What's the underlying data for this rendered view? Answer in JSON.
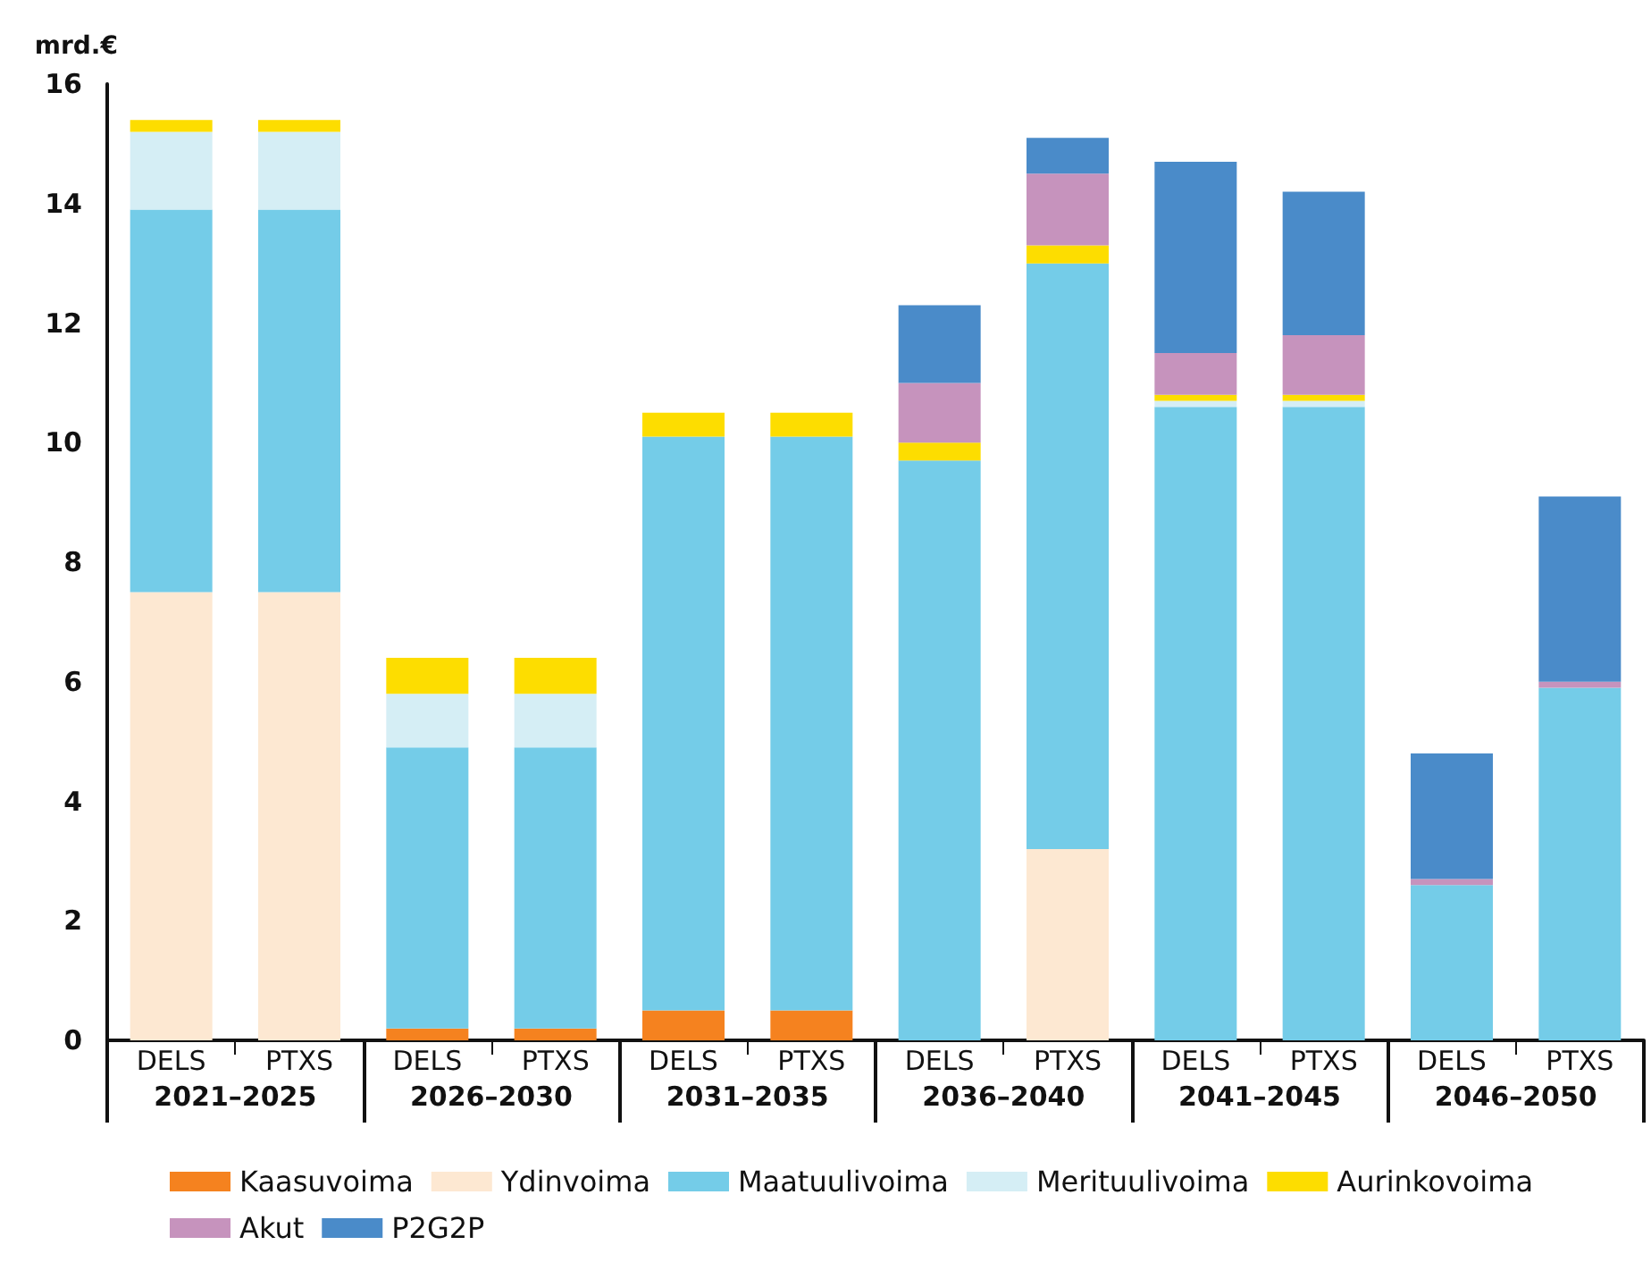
{
  "chart_data": {
    "type": "bar",
    "stacked": true,
    "ylabel": "mrd.€",
    "categories": [
      "DELS",
      "PTXS",
      "DELS",
      "PTXS",
      "DELS",
      "PTXS",
      "DELS",
      "PTXS",
      "DELS",
      "PTXS",
      "DELS",
      "PTXS"
    ],
    "annotations": [
      "2021–2025",
      "2026–2030",
      "2031–2035",
      "2036–2040",
      "2041–2045",
      "2046–2050"
    ],
    "series": [
      {
        "name": "Kaasuvoima",
        "color": "#f5821f",
        "values": [
          null,
          null,
          0.2,
          0.2,
          0.5,
          0.5,
          null,
          null,
          null,
          null,
          null,
          null
        ]
      },
      {
        "name": "Ydinvoima",
        "color": "#fde8d2",
        "values": [
          7.5,
          7.5,
          null,
          null,
          null,
          null,
          null,
          3.2,
          null,
          null,
          null,
          null
        ]
      },
      {
        "name": "Maatuulivoima",
        "color": "#74cce8",
        "values": [
          6.4,
          6.4,
          4.7,
          4.7,
          9.6,
          9.6,
          9.7,
          9.8,
          10.6,
          10.6,
          2.6,
          5.9
        ]
      },
      {
        "name": "Merituulivoima",
        "color": "#d5eef5",
        "values": [
          1.3,
          1.3,
          0.9,
          0.9,
          null,
          null,
          null,
          null,
          0.1,
          0.1,
          null,
          null
        ]
      },
      {
        "name": "Aurinkovoima",
        "color": "#fddd00",
        "values": [
          0.2,
          0.2,
          0.6,
          0.6,
          0.4,
          0.4,
          0.3,
          0.3,
          0.1,
          0.1,
          null,
          null
        ]
      },
      {
        "name": "Akut",
        "color": "#c693bd",
        "values": [
          null,
          null,
          null,
          null,
          null,
          null,
          1.0,
          1.2,
          0.7,
          1.0,
          0.1,
          0.1
        ]
      },
      {
        "name": "P2G2P",
        "color": "#4a8bc9",
        "values": [
          null,
          null,
          null,
          null,
          null,
          null,
          1.3,
          0.6,
          3.2,
          2.4,
          2.1,
          3.1
        ]
      }
    ],
    "ylim": [
      0,
      16
    ],
    "yticks": [
      0,
      2,
      4,
      6,
      8,
      10,
      12,
      14,
      16
    ],
    "grid": false,
    "legend": "bottom"
  }
}
